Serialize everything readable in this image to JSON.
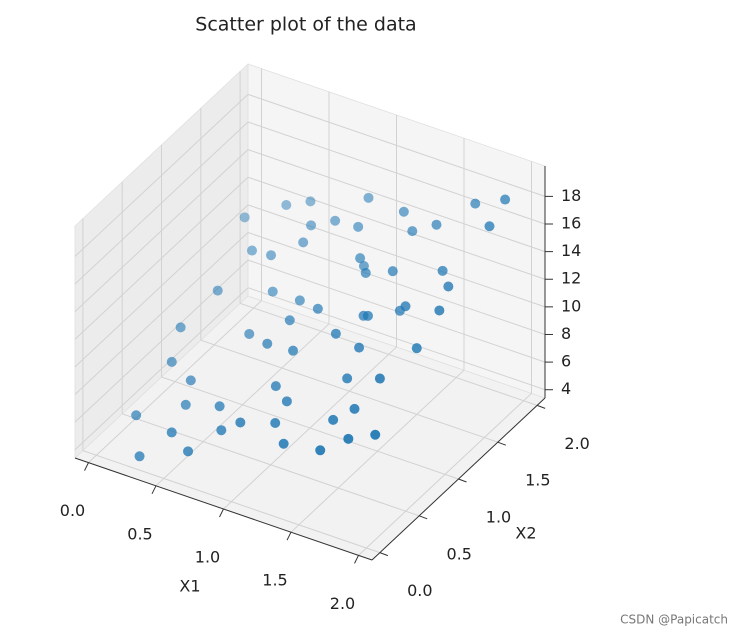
{
  "chart_data": {
    "type": "scatter3d",
    "title": "Scatter plot of the data",
    "xlabel": "X1",
    "ylabel": "X2",
    "color": "#1f77b4",
    "grid": true,
    "watermark": "CSDN @Papicatch",
    "xlim": [
      -0.1,
      2.1
    ],
    "ylim": [
      -0.1,
      2.1
    ],
    "zlim": [
      3.4,
      20.2
    ],
    "xticks": [
      {
        "value": 0,
        "label": "0.0"
      },
      {
        "value": 0.5,
        "label": "0.5"
      },
      {
        "value": 1,
        "label": "1.0"
      },
      {
        "value": 1.5,
        "label": "1.5"
      },
      {
        "value": 2,
        "label": "2.0"
      }
    ],
    "yticks": [
      {
        "value": 0,
        "label": "0.0"
      },
      {
        "value": 0.5,
        "label": "0.5"
      },
      {
        "value": 1,
        "label": "1.0"
      },
      {
        "value": 1.5,
        "label": "1.5"
      },
      {
        "value": 2,
        "label": "2.0"
      }
    ],
    "zticks": [
      4,
      6,
      8,
      10,
      12,
      14,
      16,
      18
    ],
    "x1": [
      0.05,
      0.12,
      0.2,
      0.3,
      0.35,
      0.42,
      0.5,
      0.55,
      0.6,
      0.68,
      0.75,
      0.8,
      0.88,
      0.95,
      1.0,
      1.05,
      1.12,
      1.2,
      1.25,
      1.3,
      1.38,
      1.45,
      1.5,
      1.55,
      1.62,
      1.7,
      1.78,
      1.85,
      1.92,
      1.98,
      0.1,
      0.25,
      0.4,
      0.52,
      0.65,
      0.72,
      0.85,
      0.98,
      1.08,
      1.15,
      1.28,
      1.35,
      1.48,
      1.6,
      1.72,
      1.82,
      1.95,
      0.18,
      0.45,
      0.78,
      1.02,
      1.4,
      1.65,
      1.9,
      0.6,
      0.32,
      1.18,
      1.52,
      0.92,
      1.75
    ],
    "x2": [
      1.8,
      0.3,
      1.2,
      1.9,
      0.6,
      1.5,
      0.1,
      1.0,
      1.7,
      0.4,
      1.3,
      0.8,
      1.95,
      0.2,
      1.1,
      1.6,
      0.5,
      1.85,
      0.9,
      0.15,
      1.4,
      0.7,
      1.75,
      0.35,
      1.15,
      1.9,
      0.55,
      1.3,
      0.25,
      1.6,
      0.9,
      1.55,
      0.45,
      1.35,
      0.05,
      1.8,
      1.0,
      0.6,
      1.5,
      0.3,
      1.2,
      1.7,
      0.8,
      0.1,
      1.45,
      0.95,
      1.85,
      0.65,
      1.95,
      0.25,
      0.75,
      1.05,
      0.45,
      1.1,
      1.6,
      0.0,
      1.4,
      1.25,
      1.75,
      0.2
    ],
    "values": [
      11.2,
      5.1,
      9.6,
      12.4,
      6.8,
      11.3,
      6.2,
      8.7,
      13.0,
      7.1,
      10.2,
      9.9,
      14.6,
      7.9,
      11.5,
      12.1,
      8.4,
      15.2,
      11.6,
      7.8,
      13.9,
      10.1,
      15.8,
      9.3,
      13.5,
      17.2,
      12.0,
      14.9,
      10.0,
      18.1,
      8.2,
      10.8,
      6.0,
      9.8,
      5.6,
      13.2,
      10.7,
      8.5,
      13.3,
      8.0,
      11.4,
      15.1,
      11.9,
      8.6,
      14.8,
      12.2,
      18.6,
      7.3,
      12.9,
      6.5,
      10.4,
      12.6,
      9.9,
      14.4,
      12.3,
      4.4,
      13.1,
      12.3,
      13.7,
      9.4
    ]
  }
}
